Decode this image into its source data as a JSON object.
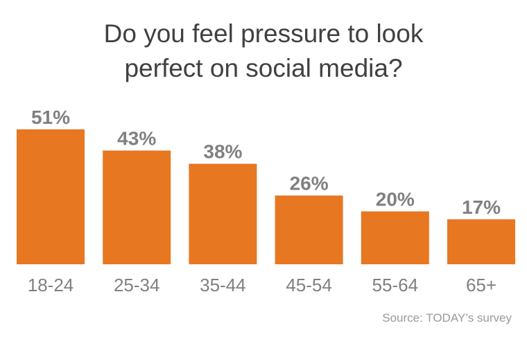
{
  "chart_data": {
    "type": "bar",
    "title": "Do you feel pressure to look perfect on social media?",
    "title_lines": [
      "Do you feel pressure to look",
      "perfect on social media?"
    ],
    "categories": [
      "18-24",
      "25-34",
      "35-44",
      "45-54",
      "55-64",
      "65+"
    ],
    "values": [
      51,
      43,
      38,
      26,
      20,
      17
    ],
    "value_labels": [
      "51%",
      "43%",
      "38%",
      "26%",
      "20%",
      "17%"
    ],
    "unit": "%",
    "xlabel": "",
    "ylabel": "",
    "ylim": [
      0,
      51
    ],
    "grid": false,
    "legend": "none",
    "bar_color": "#E87722",
    "label_color": "#808080",
    "source": "Source: TODAY’s survey"
  }
}
